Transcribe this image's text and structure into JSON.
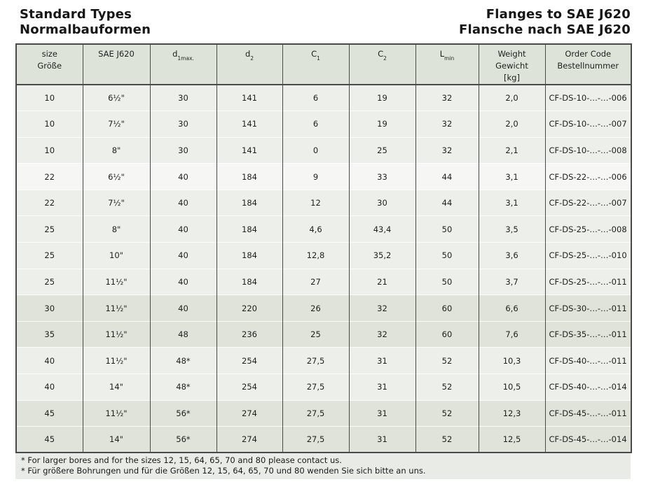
{
  "titles": {
    "left_line1": "Standard Types",
    "left_line2": "Normalbauformen",
    "right_line1": "Flanges to SAE J620",
    "right_line2": "Flansche nach SAE J620"
  },
  "colors": {
    "header_bg": "#dee3d9",
    "row_light": "#edefeb",
    "row_white": "#f6f7f5",
    "row_dark": "#dfe3d9",
    "border_dark": "#4a4a4a",
    "footnote_bg": "#e9ebe6"
  },
  "table": {
    "columns": [
      {
        "id": "size",
        "label": [
          "size",
          "Größe"
        ]
      },
      {
        "id": "sae",
        "label": [
          "SAE J620"
        ]
      },
      {
        "id": "d1max",
        "label_base": "d",
        "label_sub": "1max."
      },
      {
        "id": "d2",
        "label_base": "d",
        "label_sub": "2"
      },
      {
        "id": "c1",
        "label_base": "C",
        "label_sub": "1"
      },
      {
        "id": "c2",
        "label_base": "C",
        "label_sub": "2"
      },
      {
        "id": "lmin",
        "label_base": "L",
        "label_sub": "min"
      },
      {
        "id": "weight",
        "label": [
          "Weight",
          "Gewicht",
          "[kg]"
        ]
      },
      {
        "id": "order",
        "label": [
          "Order Code",
          "Bestellnummer"
        ]
      }
    ],
    "rows": [
      {
        "shade": "light",
        "cells": [
          "10",
          "6½\"",
          "30",
          "141",
          "6",
          "19",
          "32",
          "2,0",
          "CF-DS-10-…-…-006"
        ]
      },
      {
        "shade": "light",
        "cells": [
          "10",
          "7½\"",
          "30",
          "141",
          "6",
          "19",
          "32",
          "2,0",
          "CF-DS-10-…-…-007"
        ]
      },
      {
        "shade": "light",
        "cells": [
          "10",
          "8\"",
          "30",
          "141",
          "0",
          "25",
          "32",
          "2,1",
          "CF-DS-10-…-…-008"
        ]
      },
      {
        "shade": "white",
        "cells": [
          "22",
          "6½\"",
          "40",
          "184",
          "9",
          "33",
          "44",
          "3,1",
          "CF-DS-22-…-…-006"
        ]
      },
      {
        "shade": "light",
        "cells": [
          "22",
          "7½\"",
          "40",
          "184",
          "12",
          "30",
          "44",
          "3,1",
          "CF-DS-22-…-…-007"
        ]
      },
      {
        "shade": "light",
        "cells": [
          "25",
          "8\"",
          "40",
          "184",
          "4,6",
          "43,4",
          "50",
          "3,5",
          "CF-DS-25-…-…-008"
        ]
      },
      {
        "shade": "light",
        "cells": [
          "25",
          "10\"",
          "40",
          "184",
          "12,8",
          "35,2",
          "50",
          "3,6",
          "CF-DS-25-…-…-010"
        ]
      },
      {
        "shade": "light",
        "cells": [
          "25",
          "11½\"",
          "40",
          "184",
          "27",
          "21",
          "50",
          "3,7",
          "CF-DS-25-…-…-011"
        ]
      },
      {
        "shade": "dark",
        "cells": [
          "30",
          "11½\"",
          "40",
          "220",
          "26",
          "32",
          "60",
          "6,6",
          "CF-DS-30-…-…-011"
        ]
      },
      {
        "shade": "dark",
        "cells": [
          "35",
          "11½\"",
          "48",
          "236",
          "25",
          "32",
          "60",
          "7,6",
          "CF-DS-35-…-…-011"
        ]
      },
      {
        "shade": "light",
        "cells": [
          "40",
          "11½\"",
          "48*",
          "254",
          "27,5",
          "31",
          "52",
          "10,3",
          "CF-DS-40-…-…-011"
        ]
      },
      {
        "shade": "light",
        "cells": [
          "40",
          "14\"",
          "48*",
          "254",
          "27,5",
          "31",
          "52",
          "10,5",
          "CF-DS-40-…-…-014"
        ]
      },
      {
        "shade": "dark",
        "cells": [
          "45",
          "11½\"",
          "56*",
          "274",
          "27,5",
          "31",
          "52",
          "12,3",
          "CF-DS-45-…-…-011"
        ]
      },
      {
        "shade": "dark",
        "cells": [
          "45",
          "14\"",
          "56*",
          "274",
          "27,5",
          "31",
          "52",
          "12,5",
          "CF-DS-45-…-…-014"
        ]
      }
    ]
  },
  "footnotes": [
    "* For larger bores and for the sizes 12, 15, 64, 65, 70 and 80 please contact us.",
    "* Für größere Bohrungen und für die Größen 12, 15, 64, 65, 70 und 80 wenden Sie sich bitte an uns."
  ]
}
